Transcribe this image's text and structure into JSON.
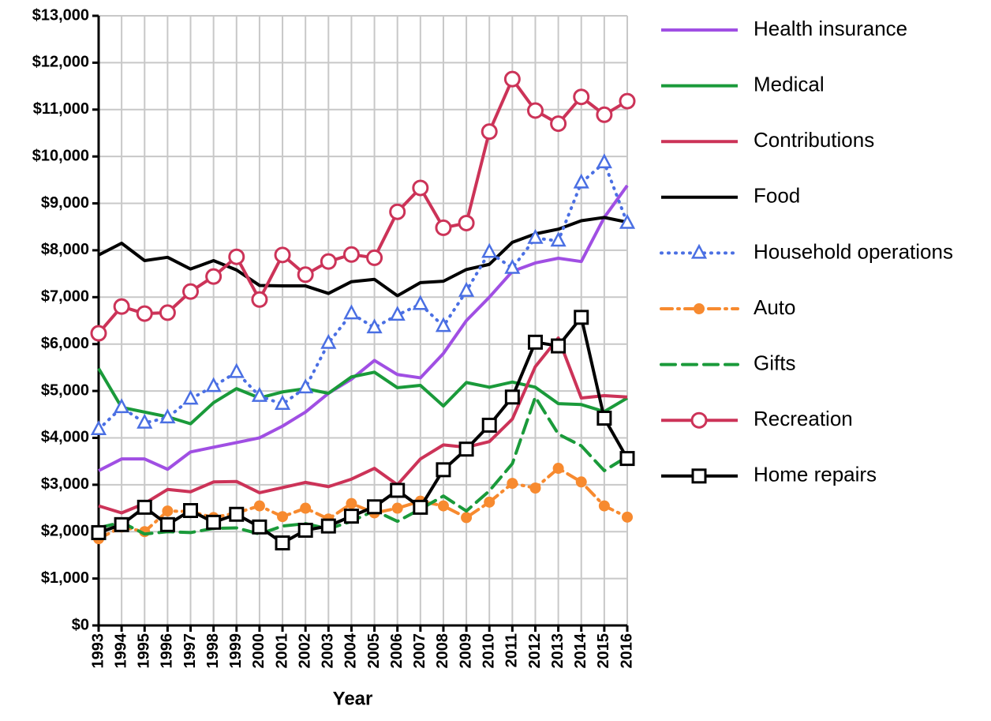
{
  "chart_data": {
    "type": "line",
    "x_label": "Year",
    "x": [
      1993,
      1994,
      1995,
      1996,
      1997,
      1998,
      1999,
      2000,
      2001,
      2002,
      2003,
      2004,
      2005,
      2006,
      2007,
      2008,
      2009,
      2010,
      2011,
      2012,
      2013,
      2014,
      2015,
      2016
    ],
    "xlim": [
      1993,
      2016
    ],
    "ylim": [
      0,
      13000
    ],
    "yticks": [
      {
        "value": 0,
        "label": "$0"
      },
      {
        "value": 1000,
        "label": "$1,000"
      },
      {
        "value": 2000,
        "label": "$2,000"
      },
      {
        "value": 3000,
        "label": "$3,000"
      },
      {
        "value": 4000,
        "label": "$4,000"
      },
      {
        "value": 5000,
        "label": "$5,000"
      },
      {
        "value": 6000,
        "label": "$6,000"
      },
      {
        "value": 7000,
        "label": "$7,000"
      },
      {
        "value": 8000,
        "label": "$8,000"
      },
      {
        "value": 9000,
        "label": "$9,000"
      },
      {
        "value": 10000,
        "label": "$10,000"
      },
      {
        "value": 11000,
        "label": "$11,000"
      },
      {
        "value": 12000,
        "label": "$12,000"
      },
      {
        "value": 13000,
        "label": "$13,000"
      }
    ],
    "grid": true,
    "legend": "right",
    "series": [
      {
        "name": "Health insurance",
        "color": "#a04fe3",
        "line_style": "solid",
        "marker": "none",
        "values": [
          3300,
          3550,
          3550,
          3330,
          3700,
          3800,
          3900,
          4000,
          4250,
          4550,
          4950,
          5250,
          5650,
          5350,
          5280,
          5800,
          6500,
          7000,
          7550,
          7730,
          7830,
          7760,
          8700,
          9380
        ]
      },
      {
        "name": "Medical",
        "color": "#1a9a3a",
        "line_style": "solid",
        "marker": "none",
        "values": [
          5480,
          4650,
          4550,
          4450,
          4300,
          4750,
          5050,
          4850,
          4980,
          5050,
          4950,
          5300,
          5400,
          5070,
          5120,
          4680,
          5180,
          5080,
          5190,
          5080,
          4730,
          4710,
          4560,
          4850
        ]
      },
      {
        "name": "Contributions",
        "color": "#cc3358",
        "line_style": "solid",
        "marker": "none",
        "values": [
          2550,
          2400,
          2600,
          2900,
          2850,
          3060,
          3070,
          2830,
          2940,
          3050,
          2960,
          3120,
          3350,
          3000,
          3550,
          3850,
          3800,
          3920,
          4400,
          5520,
          6130,
          4850,
          4900,
          4870
        ]
      },
      {
        "name": "Food",
        "color": "#000000",
        "line_style": "solid",
        "marker": "none",
        "values": [
          7900,
          8150,
          7780,
          7850,
          7600,
          7780,
          7580,
          7250,
          7240,
          7240,
          7080,
          7330,
          7380,
          7030,
          7310,
          7340,
          7590,
          7700,
          8170,
          8350,
          8450,
          8630,
          8700,
          8600
        ]
      },
      {
        "name": "Household operations",
        "color": "#4a6fe3",
        "line_style": "dotted",
        "marker": "triangle",
        "values": [
          4180,
          4650,
          4320,
          4430,
          4830,
          5100,
          5400,
          4890,
          4720,
          5070,
          6020,
          6650,
          6350,
          6620,
          6850,
          6380,
          7130,
          7960,
          7620,
          8260,
          8200,
          9440,
          9870,
          8580
        ]
      },
      {
        "name": "Auto",
        "color": "#f78a2f",
        "line_style": "dashdot",
        "marker": "dot",
        "values": [
          1850,
          2100,
          2000,
          2440,
          2430,
          2300,
          2400,
          2550,
          2320,
          2500,
          2270,
          2600,
          2400,
          2500,
          2650,
          2550,
          2300,
          2630,
          3030,
          2930,
          3350,
          3060,
          2550,
          2310
        ]
      },
      {
        "name": "Gifts",
        "color": "#1a9a3a",
        "line_style": "dashed",
        "marker": "none",
        "values": [
          2080,
          2200,
          1950,
          2000,
          1980,
          2070,
          2080,
          1950,
          2120,
          2170,
          2060,
          2220,
          2450,
          2220,
          2480,
          2760,
          2440,
          2870,
          3450,
          4870,
          4080,
          3830,
          3300,
          3600
        ]
      },
      {
        "name": "Recreation",
        "color": "#cc3358",
        "line_style": "solid",
        "marker": "circle",
        "values": [
          6230,
          6800,
          6650,
          6670,
          7120,
          7440,
          7860,
          6950,
          7900,
          7480,
          7760,
          7910,
          7840,
          8820,
          9330,
          8480,
          8580,
          10530,
          11650,
          10980,
          10700,
          11270,
          10890,
          11180
        ]
      },
      {
        "name": "Home repairs",
        "color": "#000000",
        "line_style": "solid",
        "marker": "square",
        "values": [
          1980,
          2150,
          2520,
          2150,
          2450,
          2200,
          2370,
          2100,
          1760,
          2030,
          2120,
          2330,
          2530,
          2880,
          2520,
          3320,
          3760,
          4270,
          4870,
          6040,
          5960,
          6570,
          4420,
          3560
        ]
      }
    ]
  }
}
